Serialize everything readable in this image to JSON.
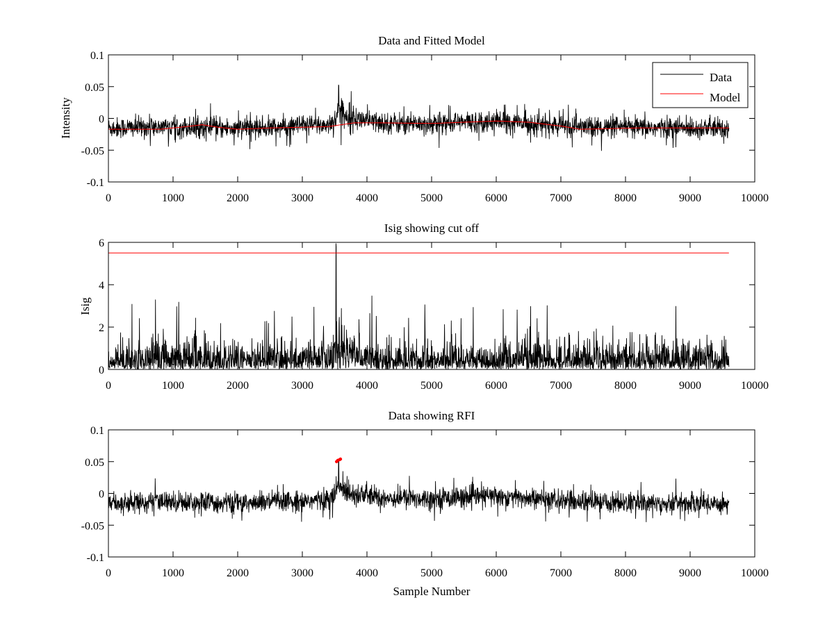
{
  "chart_data": [
    {
      "type": "line",
      "title": "Data and Fitted Model",
      "xlabel": "",
      "ylabel": "Intensity",
      "xlim": [
        0,
        10000
      ],
      "ylim": [
        -0.1,
        0.1
      ],
      "xticks": [
        0,
        1000,
        2000,
        3000,
        4000,
        5000,
        6000,
        7000,
        8000,
        9000,
        10000
      ],
      "yticks": [
        -0.1,
        -0.05,
        0,
        0.05,
        0.1
      ],
      "yticklabels": [
        "-0.1",
        "-0.05",
        "0",
        "0.05",
        "0.1"
      ],
      "legend": {
        "position": "top-right",
        "entries": [
          {
            "label": "Data",
            "color": "#000000"
          },
          {
            "label": "Model",
            "color": "#ff0000"
          }
        ]
      },
      "series": [
        {
          "name": "Data",
          "color": "#000000",
          "kind": "noisy",
          "x": [
            0,
            1000,
            2000,
            3000,
            3400,
            3500,
            3560,
            3620,
            3800,
            4200,
            5000,
            6000,
            7000,
            8000,
            9000,
            9600
          ],
          "baseline": [
            -0.015,
            -0.013,
            -0.016,
            -0.012,
            -0.01,
            -0.003,
            0.012,
            0.008,
            0.0,
            -0.007,
            -0.008,
            -0.004,
            -0.012,
            -0.015,
            -0.015,
            -0.016
          ],
          "spread": [
            0.015,
            0.015,
            0.015,
            0.015,
            0.015,
            0.017,
            0.02,
            0.02,
            0.017,
            0.015,
            0.015,
            0.015,
            0.015,
            0.015,
            0.015,
            0.015
          ],
          "extremes": [
            -0.057,
            0.053
          ]
        },
        {
          "name": "Model",
          "color": "#ff0000",
          "kind": "line",
          "x": [
            0,
            800,
            1200,
            1450,
            1700,
            2000,
            2500,
            3000,
            3400,
            3600,
            3800,
            4200,
            5000,
            5500,
            6000,
            6500,
            7000,
            7300,
            7800,
            8200,
            9000,
            9600
          ],
          "y": [
            -0.017,
            -0.017,
            -0.013,
            -0.01,
            -0.014,
            -0.017,
            -0.015,
            -0.014,
            -0.013,
            -0.01,
            -0.007,
            -0.007,
            -0.008,
            -0.006,
            -0.004,
            -0.006,
            -0.012,
            -0.017,
            -0.016,
            -0.015,
            -0.015,
            -0.015
          ]
        }
      ]
    },
    {
      "type": "line",
      "title": "Isig showing cut off",
      "xlabel": "",
      "ylabel": "Isig",
      "xlim": [
        0,
        10000
      ],
      "ylim": [
        0,
        6
      ],
      "xticks": [
        0,
        1000,
        2000,
        3000,
        4000,
        5000,
        6000,
        7000,
        8000,
        9000,
        10000
      ],
      "yticks": [
        0,
        2,
        4,
        6
      ],
      "yticklabels": [
        "0",
        "2",
        "4",
        "6"
      ],
      "series": [
        {
          "color": "#000000",
          "kind": "abs-noisy",
          "x": [
            0,
            1000,
            2000,
            3000,
            3400,
            3500,
            3560,
            3620,
            3800,
            4200,
            5000,
            6000,
            7000,
            8000,
            9000,
            9600
          ],
          "scale": [
            0.85,
            0.85,
            0.85,
            0.85,
            0.9,
            1.2,
            1.8,
            1.6,
            1.0,
            0.85,
            0.85,
            0.85,
            0.85,
            0.85,
            0.85,
            0.85
          ],
          "extremes": [
            0,
            5.95
          ]
        },
        {
          "color": "#ff0000",
          "kind": "line",
          "x": [
            0,
            9600
          ],
          "y": [
            5.5,
            5.5
          ]
        }
      ]
    },
    {
      "type": "scatter",
      "title": "Data showing RFI",
      "xlabel": "Sample Number",
      "ylabel": "",
      "xlim": [
        0,
        10000
      ],
      "ylim": [
        -0.1,
        0.1
      ],
      "xticks": [
        0,
        1000,
        2000,
        3000,
        4000,
        5000,
        6000,
        7000,
        8000,
        9000,
        10000
      ],
      "yticks": [
        -0.1,
        -0.05,
        0,
        0.05,
        0.1
      ],
      "yticklabels": [
        "-0.1",
        "-0.05",
        "0",
        "0.05",
        "0.1"
      ],
      "series": [
        {
          "color": "#000000",
          "kind": "noisy",
          "x": [
            0,
            1000,
            2000,
            3000,
            3400,
            3500,
            3560,
            3620,
            3800,
            4200,
            5000,
            6000,
            7000,
            8000,
            9000,
            9600
          ],
          "baseline": [
            -0.015,
            -0.013,
            -0.016,
            -0.012,
            -0.01,
            -0.003,
            0.012,
            0.008,
            0.0,
            -0.007,
            -0.008,
            -0.004,
            -0.012,
            -0.015,
            -0.015,
            -0.016
          ],
          "spread": [
            0.015,
            0.015,
            0.015,
            0.015,
            0.015,
            0.017,
            0.02,
            0.02,
            0.017,
            0.015,
            0.015,
            0.015,
            0.015,
            0.015,
            0.015,
            0.015
          ],
          "extremes": [
            -0.057,
            0.053
          ]
        },
        {
          "color": "#ff0000",
          "kind": "markers",
          "x": [
            3530,
            3550,
            3575,
            3590
          ],
          "y": [
            0.05,
            0.052,
            0.053,
            0.054
          ]
        }
      ]
    }
  ]
}
